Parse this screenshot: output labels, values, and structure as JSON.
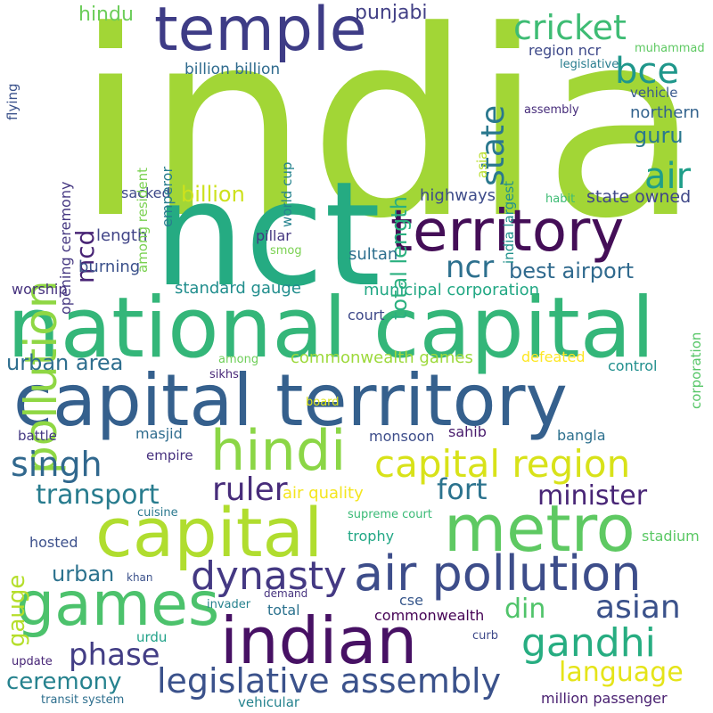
{
  "palette": {
    "background": "#ffffff",
    "yellow": "#e6dd1a",
    "light_green": "#a2d636",
    "green": "#5ec962",
    "sea_green": "#37b779",
    "teal": "#22a287",
    "dark_teal": "#1f8a8c",
    "blue_teal": "#2a788e",
    "blue": "#35608d",
    "indigo": "#404387",
    "purple": "#472d7b",
    "dark_purple": "#440154"
  },
  "words": [
    {
      "text": "india",
      "color": "#a2d636"
    },
    {
      "text": "nct",
      "color": "#25ab82"
    },
    {
      "text": "national capital",
      "color": "#34b679"
    },
    {
      "text": "capital territory",
      "color": "#35608d"
    },
    {
      "text": "temple",
      "color": "#3e3c86"
    },
    {
      "text": "territory",
      "color": "#440e57"
    },
    {
      "text": "capital",
      "color": "#b0dd2f"
    },
    {
      "text": "metro",
      "color": "#5ec962"
    },
    {
      "text": "hindi",
      "color": "#8bd646"
    },
    {
      "text": "games",
      "color": "#4cc26c"
    },
    {
      "text": "indian",
      "color": "#471164"
    },
    {
      "text": "air pollution",
      "color": "#3d4d8a"
    },
    {
      "text": "pollution",
      "color": "#8fd744"
    },
    {
      "text": "capital region",
      "color": "#d8e219"
    },
    {
      "text": "bce",
      "color": "#1f978b"
    },
    {
      "text": "cricket",
      "color": "#3ebc74"
    },
    {
      "text": "state",
      "color": "#2a788e"
    },
    {
      "text": "dynasty",
      "color": "#443983"
    },
    {
      "text": "legislative assembly",
      "color": "#3b528b"
    },
    {
      "text": "gandhi",
      "color": "#27ad81"
    },
    {
      "text": "singh",
      "color": "#31688e"
    },
    {
      "text": "air",
      "color": "#1f9e89"
    },
    {
      "text": "ncr",
      "color": "#2d708e"
    },
    {
      "text": "transport",
      "color": "#287c8e"
    },
    {
      "text": "ruler",
      "color": "#472c7a"
    },
    {
      "text": "asian",
      "color": "#3b528b"
    },
    {
      "text": "language",
      "color": "#e5e419"
    },
    {
      "text": "phase",
      "color": "#433e85"
    },
    {
      "text": "fort",
      "color": "#2c738e"
    },
    {
      "text": "minister",
      "color": "#482576"
    },
    {
      "text": "din",
      "color": "#50c46a"
    },
    {
      "text": "mcd",
      "color": "#482475"
    },
    {
      "text": "billion",
      "color": "#cde11d"
    },
    {
      "text": "best airport",
      "color": "#306a8e"
    },
    {
      "text": "total length",
      "color": "#2ab07f"
    },
    {
      "text": "ceremony",
      "color": "#26828e"
    },
    {
      "text": "gauge",
      "color": "#b5de2b"
    },
    {
      "text": "urban area",
      "color": "#2e6e8e"
    },
    {
      "text": "hindu",
      "color": "#6ccd5a"
    },
    {
      "text": "punjabi",
      "color": "#424086"
    },
    {
      "text": "guru",
      "color": "#2a788e"
    },
    {
      "text": "urban",
      "color": "#2c728e"
    },
    {
      "text": "commonwealth games",
      "color": "#9dd93b"
    },
    {
      "text": "state owned",
      "color": "#3f4788"
    },
    {
      "text": "northern",
      "color": "#33638d"
    },
    {
      "text": "billion billion",
      "color": "#2f6b8e"
    },
    {
      "text": "highways",
      "color": "#3e4c8a"
    },
    {
      "text": "municipal corporation",
      "color": "#22a884"
    },
    {
      "text": "standard gauge",
      "color": "#218e8d"
    },
    {
      "text": "burning",
      "color": "#3b518b"
    },
    {
      "text": "length",
      "color": "#414487"
    },
    {
      "text": "sultan",
      "color": "#2e6f8e"
    },
    {
      "text": "worship",
      "color": "#46327e"
    },
    {
      "text": "court",
      "color": "#3e4989"
    },
    {
      "text": "sacked",
      "color": "#3e4a89"
    },
    {
      "text": "pillar",
      "color": "#453781"
    },
    {
      "text": "smog",
      "color": "#7ad151"
    },
    {
      "text": "emperor",
      "color": "#287d8e"
    },
    {
      "text": "among resident",
      "color": "#7ad151"
    },
    {
      "text": "opening ceremony",
      "color": "#453781"
    },
    {
      "text": "flying",
      "color": "#3b528b"
    },
    {
      "text": "world cup",
      "color": "#25838e"
    },
    {
      "text": "india largest",
      "color": "#21918c"
    },
    {
      "text": "asia",
      "color": "#b8de29"
    },
    {
      "text": "region ncr",
      "color": "#3e4989"
    },
    {
      "text": "vehicle",
      "color": "#38598c"
    },
    {
      "text": "assembly",
      "color": "#472d7b"
    },
    {
      "text": "muhammad",
      "color": "#5ec962"
    },
    {
      "text": "legislative",
      "color": "#287d8e"
    },
    {
      "text": "habit",
      "color": "#3dbc74"
    },
    {
      "text": "corporation",
      "color": "#56c667"
    },
    {
      "text": "control",
      "color": "#218f8d"
    },
    {
      "text": "defeated",
      "color": "#fde725"
    },
    {
      "text": "among",
      "color": "#6ece58"
    },
    {
      "text": "sikhs",
      "color": "#482878"
    },
    {
      "text": "board",
      "color": "#dde318"
    },
    {
      "text": "battle",
      "color": "#443983"
    },
    {
      "text": "masjid",
      "color": "#2f6c8e"
    },
    {
      "text": "monsoon",
      "color": "#3d4d8a"
    },
    {
      "text": "sahib",
      "color": "#481a6c"
    },
    {
      "text": "bangla",
      "color": "#2d708e"
    },
    {
      "text": "empire",
      "color": "#46307e"
    },
    {
      "text": "air quality",
      "color": "#f4e61e"
    },
    {
      "text": "cuisine",
      "color": "#2a788e"
    },
    {
      "text": "supreme court",
      "color": "#3aba76"
    },
    {
      "text": "trophy",
      "color": "#22a785"
    },
    {
      "text": "hosted",
      "color": "#3c508b"
    },
    {
      "text": "stadium",
      "color": "#5ac864"
    },
    {
      "text": "khan",
      "color": "#3b518b"
    },
    {
      "text": "demand",
      "color": "#46327e"
    },
    {
      "text": "invader",
      "color": "#26828e"
    },
    {
      "text": "total",
      "color": "#2c728e"
    },
    {
      "text": "cse",
      "color": "#38588c"
    },
    {
      "text": "commonwealth",
      "color": "#440154"
    },
    {
      "text": "urdu",
      "color": "#1fa188"
    },
    {
      "text": "curb",
      "color": "#3e4989"
    },
    {
      "text": "update",
      "color": "#482677"
    },
    {
      "text": "transit system",
      "color": "#2e6f8e"
    },
    {
      "text": "vehicular",
      "color": "#25838e"
    },
    {
      "text": "million passenger",
      "color": "#481f70"
    }
  ]
}
